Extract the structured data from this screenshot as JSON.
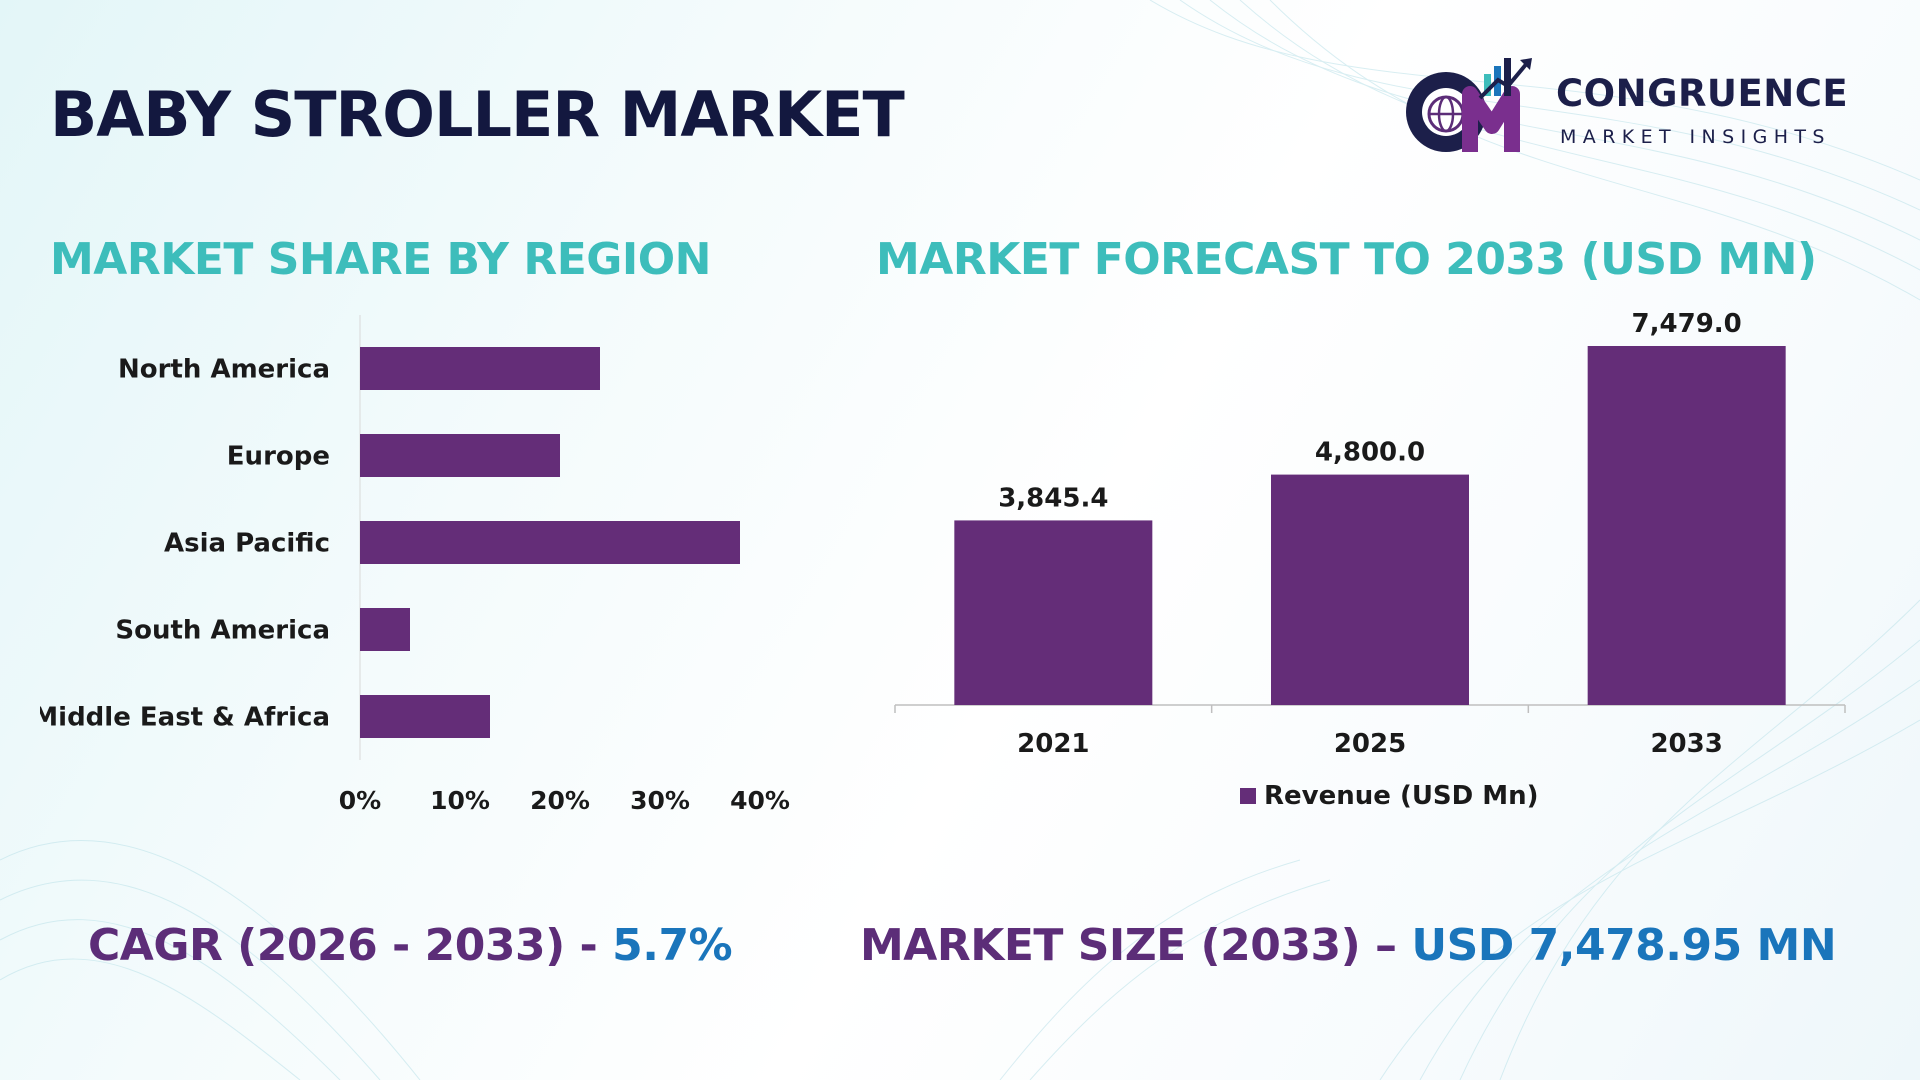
{
  "title": "BABY STROLLER MARKET",
  "logo": {
    "name": "CONGRUENCE",
    "tagline": "MARKET INSIGHTS",
    "monogram": "CM"
  },
  "colors": {
    "bar": "#642d78",
    "title_dark": "#13183f",
    "section": "#3dbdbb",
    "footer_purple": "#5c2d78",
    "footer_blue": "#1a75bb"
  },
  "chart_data": [
    {
      "type": "bar",
      "orientation": "horizontal",
      "title": "MARKET SHARE BY REGION",
      "categories": [
        "North America",
        "Europe",
        "Asia Pacific",
        "South America",
        "Middle East & Africa"
      ],
      "values": [
        24,
        20,
        38,
        5,
        13
      ],
      "unit": "%",
      "xlim": [
        0,
        40
      ],
      "xticks": [
        "0%",
        "10%",
        "20%",
        "30%",
        "40%"
      ],
      "grid": false
    },
    {
      "type": "bar",
      "orientation": "vertical",
      "title": "MARKET FORECAST TO 2033 (USD MN)",
      "categories": [
        "2021",
        "2025",
        "2033"
      ],
      "series": [
        {
          "name": "Revenue (USD Mn)",
          "values": [
            3845.4,
            4800.0,
            7479.0
          ]
        }
      ],
      "data_labels": [
        "3,845.4",
        "4,800.0",
        "7,479.0"
      ],
      "legend": "bottom",
      "grid": false
    }
  ],
  "footer": {
    "cagr_label": "CAGR (2026 - 2033) - ",
    "cagr_value": "5.7%",
    "size_label": "MARKET SIZE (2033) – ",
    "size_value": "USD 7,478.95 MN"
  }
}
